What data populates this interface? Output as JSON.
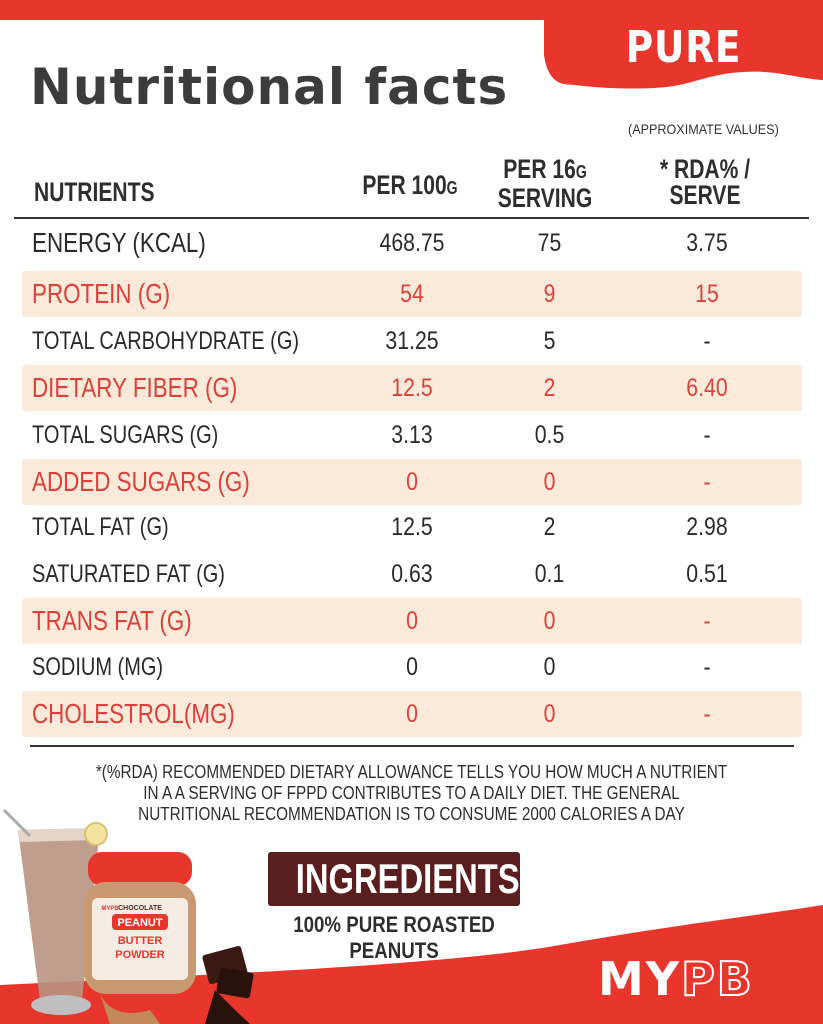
{
  "badge": {
    "label": "PURE"
  },
  "title": "Nutritional facts",
  "note": "(APPROXIMATE VALUES)",
  "columns": {
    "nutrients": "NUTRIENTS",
    "per100_main": "PER 100",
    "per100_unit": "G",
    "serving_line1_main": "PER 16",
    "serving_line1_unit": "G",
    "serving_line2": "SERVING",
    "rda_line1": "* RDA% /",
    "rda_line2": "SERVE"
  },
  "rows": [
    {
      "name": "ENERGY (KCAL)",
      "per100": "468.75",
      "serving": "75",
      "rda": "3.75"
    },
    {
      "name": "PROTEIN (G)",
      "per100": "54",
      "serving": "9",
      "rda": "15"
    },
    {
      "name": "TOTAL CARBOHYDRATE (G)",
      "per100": "31.25",
      "serving": "5",
      "rda": "-"
    },
    {
      "name": "DIETARY FIBER (G)",
      "per100": "12.5",
      "serving": "2",
      "rda": "6.40"
    },
    {
      "name": "TOTAL SUGARS (G)",
      "per100": "3.13",
      "serving": "0.5",
      "rda": "-"
    },
    {
      "name": "ADDED SUGARS (G)",
      "per100": "0",
      "serving": "0",
      "rda": "-"
    },
    {
      "name": "TOTAL FAT (G)",
      "per100": "12.5",
      "serving": "2",
      "rda": "2.98"
    },
    {
      "name": "SATURATED FAT (G)",
      "per100": "0.63",
      "serving": "0.1",
      "rda": "0.51"
    },
    {
      "name": "TRANS FAT (G)",
      "per100": "0",
      "serving": "0",
      "rda": "-"
    },
    {
      "name": "SODIUM (MG)",
      "per100": "0",
      "serving": "0",
      "rda": "-"
    },
    {
      "name": "CHOLESTROL(MG)",
      "per100": "0",
      "serving": "0",
      "rda": "-"
    }
  ],
  "footnote": "*(%RDA) RECOMMENDED DIETARY ALLOWANCE TELLS YOU HOW MUCH A NUTRIENT IN A A SERVING OF FPPD CONTRIBUTES TO A DAILY DIET. THE GENERAL NUTRITIONAL RECOMMENDATION IS TO CONSUME 2000 CALORIES A DAY",
  "ingredients": {
    "heading": "INGREDIENTS",
    "text": "100% PURE ROASTED PEANUTS"
  },
  "brand": {
    "my": "MY",
    "pb": "PB"
  },
  "product": {
    "jar_brand": "MYPB",
    "jar_flavor": "CHOCOLATE",
    "jar_name": "PEANUT",
    "jar_line1": "BUTTER",
    "jar_line2": "POWDER"
  },
  "colors": {
    "accent": "#e8362c",
    "highlight_row": "#fbe9d9",
    "highlight_text": "#d8423a",
    "ingredients_box": "#5a1e1e"
  }
}
